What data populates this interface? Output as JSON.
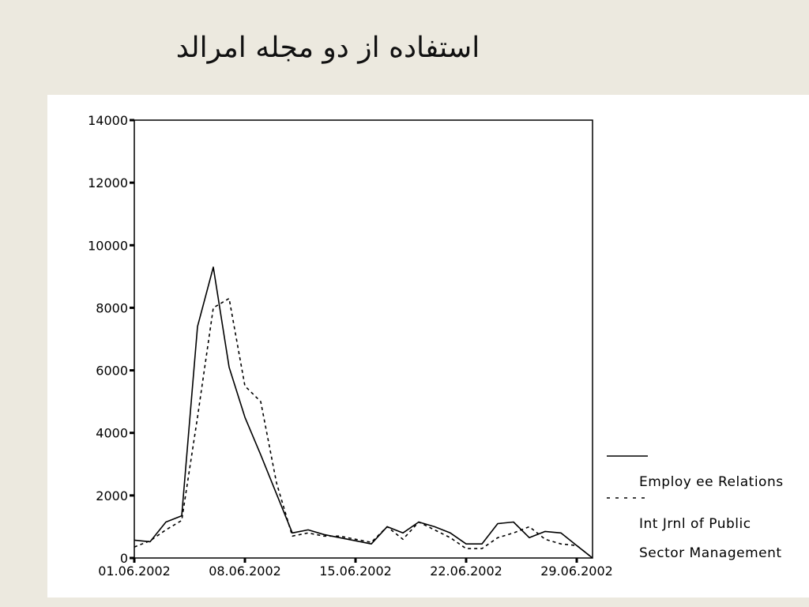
{
  "title": "استفاده از دو مجله امرالد",
  "chart_data": {
    "type": "line",
    "title": "",
    "xlabel": "",
    "ylabel": "",
    "ylim": [
      0,
      14000
    ],
    "yticks": [
      0,
      2000,
      4000,
      6000,
      8000,
      10000,
      12000,
      14000
    ],
    "xticks": [
      "01.06.2002",
      "08.06.2002",
      "15.06.2002",
      "22.06.2002",
      "29.06.2002"
    ],
    "x": [
      "01.06.2002",
      "02.06.2002",
      "03.06.2002",
      "04.06.2002",
      "05.06.2002",
      "06.06.2002",
      "07.06.2002",
      "08.06.2002",
      "09.06.2002",
      "10.06.2002",
      "11.06.2002",
      "12.06.2002",
      "13.06.2002",
      "14.06.2002",
      "15.06.2002",
      "16.06.2002",
      "17.06.2002",
      "18.06.2002",
      "19.06.2002",
      "20.06.2002",
      "21.06.2002",
      "22.06.2002",
      "23.06.2002",
      "24.06.2002",
      "25.06.2002",
      "26.06.2002",
      "27.06.2002",
      "28.06.2002",
      "29.06.2002",
      "30.06.2002"
    ],
    "grid": false,
    "legend_position": "right",
    "series": [
      {
        "name": "Employ ee Relations",
        "style": "solid",
        "values": [
          570,
          520,
          1150,
          1350,
          7400,
          9300,
          6100,
          4500,
          3300,
          2050,
          800,
          900,
          750,
          650,
          550,
          450,
          1000,
          800,
          1150,
          1000,
          800,
          450,
          450,
          1100,
          1150,
          650,
          850,
          800,
          400,
          0
        ]
      },
      {
        "name": "Int Jrnl of  Public Sector Management",
        "style": "dashed",
        "values": [
          350,
          550,
          900,
          1200,
          4500,
          8000,
          8300,
          5500,
          5000,
          2400,
          700,
          800,
          700,
          700,
          600,
          500,
          1000,
          600,
          1150,
          900,
          650,
          300,
          300,
          650,
          800,
          1000,
          600,
          450,
          400,
          0
        ]
      }
    ]
  },
  "legend": {
    "line1": "Employ ee Relations",
    "line2": "Int Jrnl of  Public",
    "line3": "Sector Management"
  }
}
